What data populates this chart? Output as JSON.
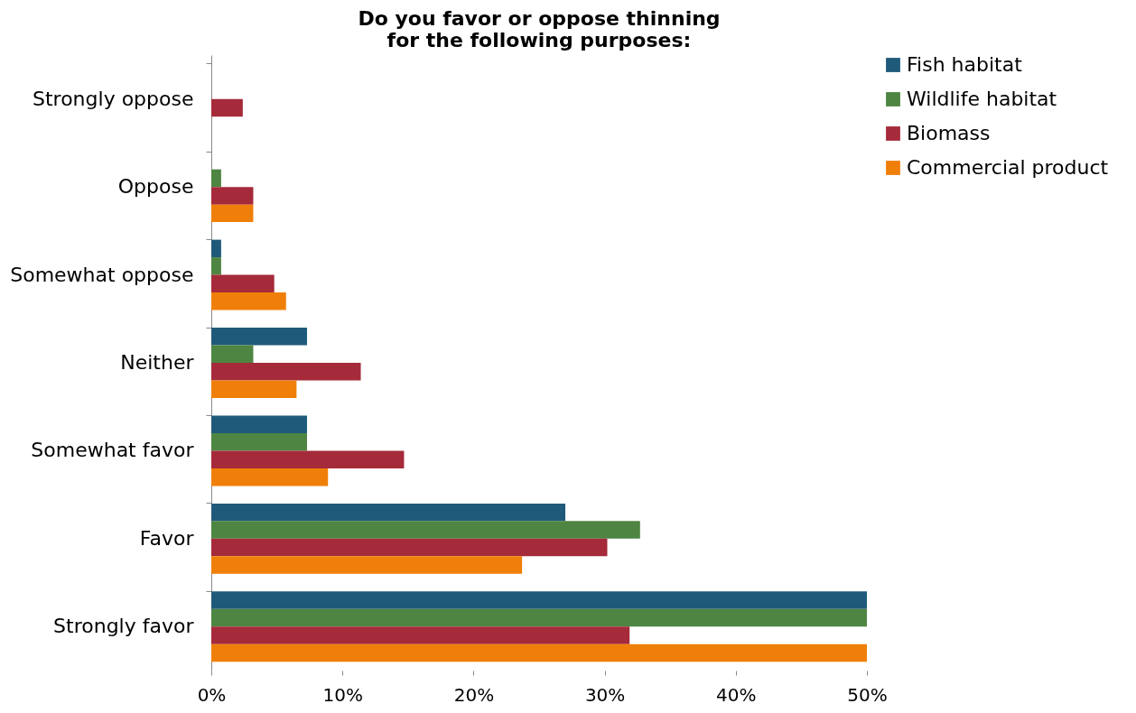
{
  "chart_data": {
    "type": "bar",
    "orientation": "horizontal",
    "title": "Do you favor or oppose thinning\nfor the following purposes:",
    "categories": [
      "Strongly oppose",
      "Oppose",
      "Somewhat oppose",
      "Neither",
      "Somewhat favor",
      "Favor",
      "Strongly favor"
    ],
    "series": [
      {
        "name": "Fish habitat",
        "color": "#1f5a7a",
        "values": [
          0,
          0,
          0.75,
          7.3,
          7.3,
          27.0,
          50
        ]
      },
      {
        "name": "Wildlife habitat",
        "color": "#4e8542",
        "values": [
          0,
          0.75,
          0.75,
          3.2,
          7.3,
          32.7,
          50
        ]
      },
      {
        "name": "Biomass",
        "color": "#a52a3a",
        "values": [
          2.4,
          3.2,
          4.8,
          11.4,
          14.7,
          30.2,
          31.9
        ]
      },
      {
        "name": "Commercial product",
        "color": "#f07f09",
        "values": [
          0,
          3.2,
          5.7,
          6.5,
          8.9,
          23.7,
          50
        ]
      }
    ],
    "xlim": [
      0,
      50
    ],
    "xticks": [
      {
        "value": 0,
        "label": "0%"
      },
      {
        "value": 10,
        "label": "10%"
      },
      {
        "value": 20,
        "label": "20%"
      },
      {
        "value": 30,
        "label": "30%"
      },
      {
        "value": 40,
        "label": "40%"
      },
      {
        "value": 50,
        "label": "50%"
      }
    ],
    "grid": false,
    "legend": "right"
  }
}
